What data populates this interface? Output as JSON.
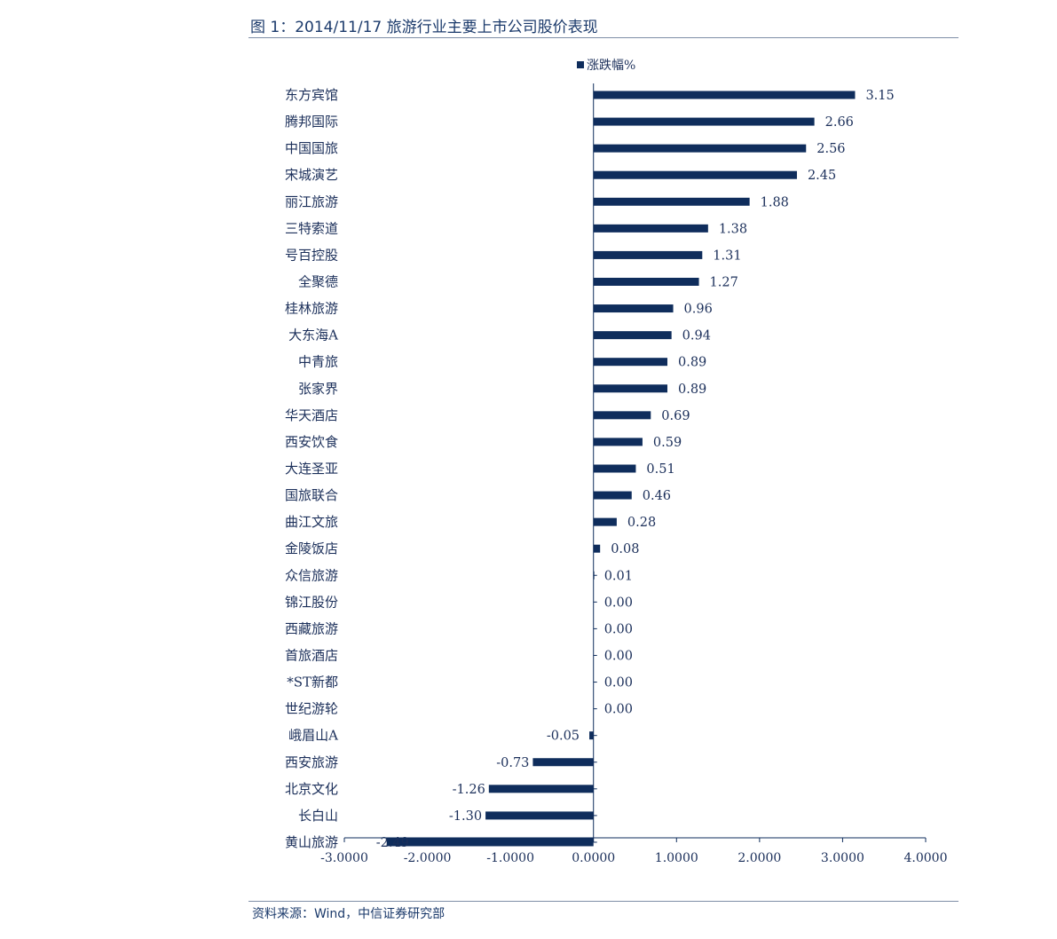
{
  "figure_title": "图 1：2014/11/17 旅游行业主要上市公司股价表现",
  "source": "资料来源：Wind，中信证券研究部",
  "colors": {
    "bar": "#0f2d5c",
    "text": "#1b2f5a",
    "rule": "#7f8fa6"
  },
  "chart_data": {
    "type": "bar",
    "orientation": "horizontal",
    "legend": {
      "label": "涨跌幅%",
      "position": "top-center"
    },
    "categories": [
      "东方宾馆",
      "腾邦国际",
      "中国国旅",
      "宋城演艺",
      "丽江旅游",
      "三特索道",
      "号百控股",
      "全聚德",
      "桂林旅游",
      "大东海A",
      "中青旅",
      "张家界",
      "华天酒店",
      "西安饮食",
      "大连圣亚",
      "国旅联合",
      "曲江文旅",
      "金陵饭店",
      "众信旅游",
      "锦江股份",
      "西藏旅游",
      "首旅酒店",
      "*ST新都",
      "世纪游轮",
      "峨眉山A",
      "西安旅游",
      "北京文化",
      "长白山",
      "黄山旅游"
    ],
    "values": [
      3.15,
      2.66,
      2.56,
      2.45,
      1.88,
      1.38,
      1.31,
      1.27,
      0.96,
      0.94,
      0.89,
      0.89,
      0.69,
      0.59,
      0.51,
      0.46,
      0.28,
      0.08,
      0.01,
      0.0,
      0.0,
      0.0,
      0.0,
      0.0,
      -0.05,
      -0.73,
      -1.26,
      -1.3,
      -2.49
    ],
    "value_labels": [
      "3.15",
      "2.66",
      "2.56",
      "2.45",
      "1.88",
      "1.38",
      "1.31",
      "1.27",
      "0.96",
      "0.94",
      "0.89",
      "0.89",
      "0.69",
      "0.59",
      "0.51",
      "0.46",
      "0.28",
      "0.08",
      "0.01",
      "0.00",
      "0.00",
      "0.00",
      "0.00",
      "0.00",
      "-0.05",
      "-0.73",
      "-1.26",
      "-1.30",
      "-2.49"
    ],
    "xlim": [
      -3,
      4
    ],
    "xticks": [
      -3,
      -2,
      -1,
      0,
      1,
      2,
      3,
      4
    ],
    "xtick_labels": [
      "-3.0000",
      "-2.0000",
      "-1.0000",
      "0.0000",
      "1.0000",
      "2.0000",
      "3.0000",
      "4.0000"
    ],
    "grid": false
  }
}
